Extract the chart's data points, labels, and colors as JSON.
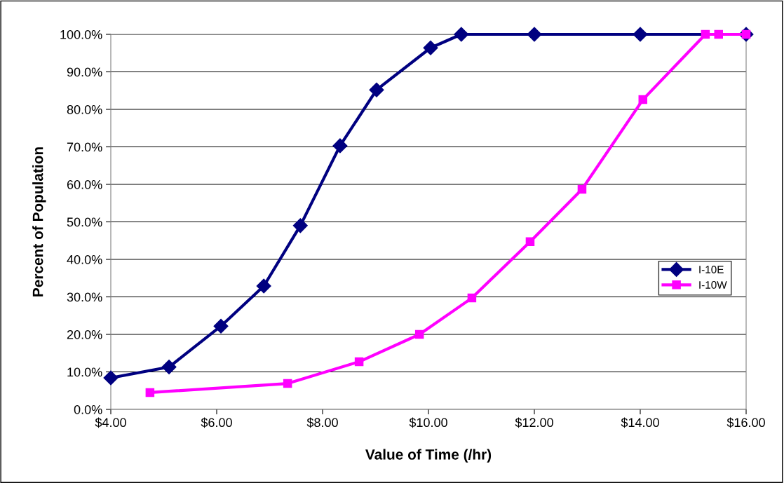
{
  "chart_data": {
    "type": "line",
    "xlabel": "Value of Time (/hr)",
    "ylabel": "Percent of Population",
    "series": [
      {
        "name": "I-10E",
        "color": "#000080",
        "marker": "diamond",
        "x": [
          4.0,
          5.1,
          6.08,
          6.89,
          7.58,
          8.33,
          9.02,
          10.04,
          10.62,
          12.0,
          14.0,
          16.0
        ],
        "values": [
          8.4,
          11.3,
          22.2,
          32.9,
          49.0,
          70.3,
          85.2,
          96.4,
          100,
          100,
          100,
          100
        ]
      },
      {
        "name": "I-10W",
        "color": "#ff00ff",
        "marker": "square",
        "x": [
          4.74,
          7.34,
          8.69,
          9.83,
          10.82,
          11.92,
          12.9,
          14.05,
          15.23,
          15.48,
          16.0
        ],
        "values": [
          4.5,
          6.9,
          12.7,
          20.0,
          29.7,
          44.7,
          58.7,
          82.6,
          100,
          100,
          100
        ]
      }
    ],
    "xlim": [
      4,
      16
    ],
    "xticks": [
      {
        "value": 4,
        "label": "$4.00"
      },
      {
        "value": 6,
        "label": "$6.00"
      },
      {
        "value": 8,
        "label": "$8.00"
      },
      {
        "value": 10,
        "label": "$10.00"
      },
      {
        "value": 12,
        "label": "$12.00"
      },
      {
        "value": 14,
        "label": "$14.00"
      },
      {
        "value": 16,
        "label": "$16.00"
      }
    ],
    "ylim": [
      0,
      100
    ],
    "yticks": [
      {
        "value": 0,
        "label": "0.0%"
      },
      {
        "value": 10,
        "label": "10.0%"
      },
      {
        "value": 20,
        "label": "20.0%"
      },
      {
        "value": 30,
        "label": "30.0%"
      },
      {
        "value": 40,
        "label": "40.0%"
      },
      {
        "value": 50,
        "label": "50.0%"
      },
      {
        "value": 60,
        "label": "60.0%"
      },
      {
        "value": 70,
        "label": "70.0%"
      },
      {
        "value": 80,
        "label": "80.0%"
      },
      {
        "value": 90,
        "label": "90.0%"
      },
      {
        "value": 100,
        "label": "100.0%"
      }
    ],
    "grid": "y",
    "legend": "center right",
    "line_style": "solid"
  }
}
